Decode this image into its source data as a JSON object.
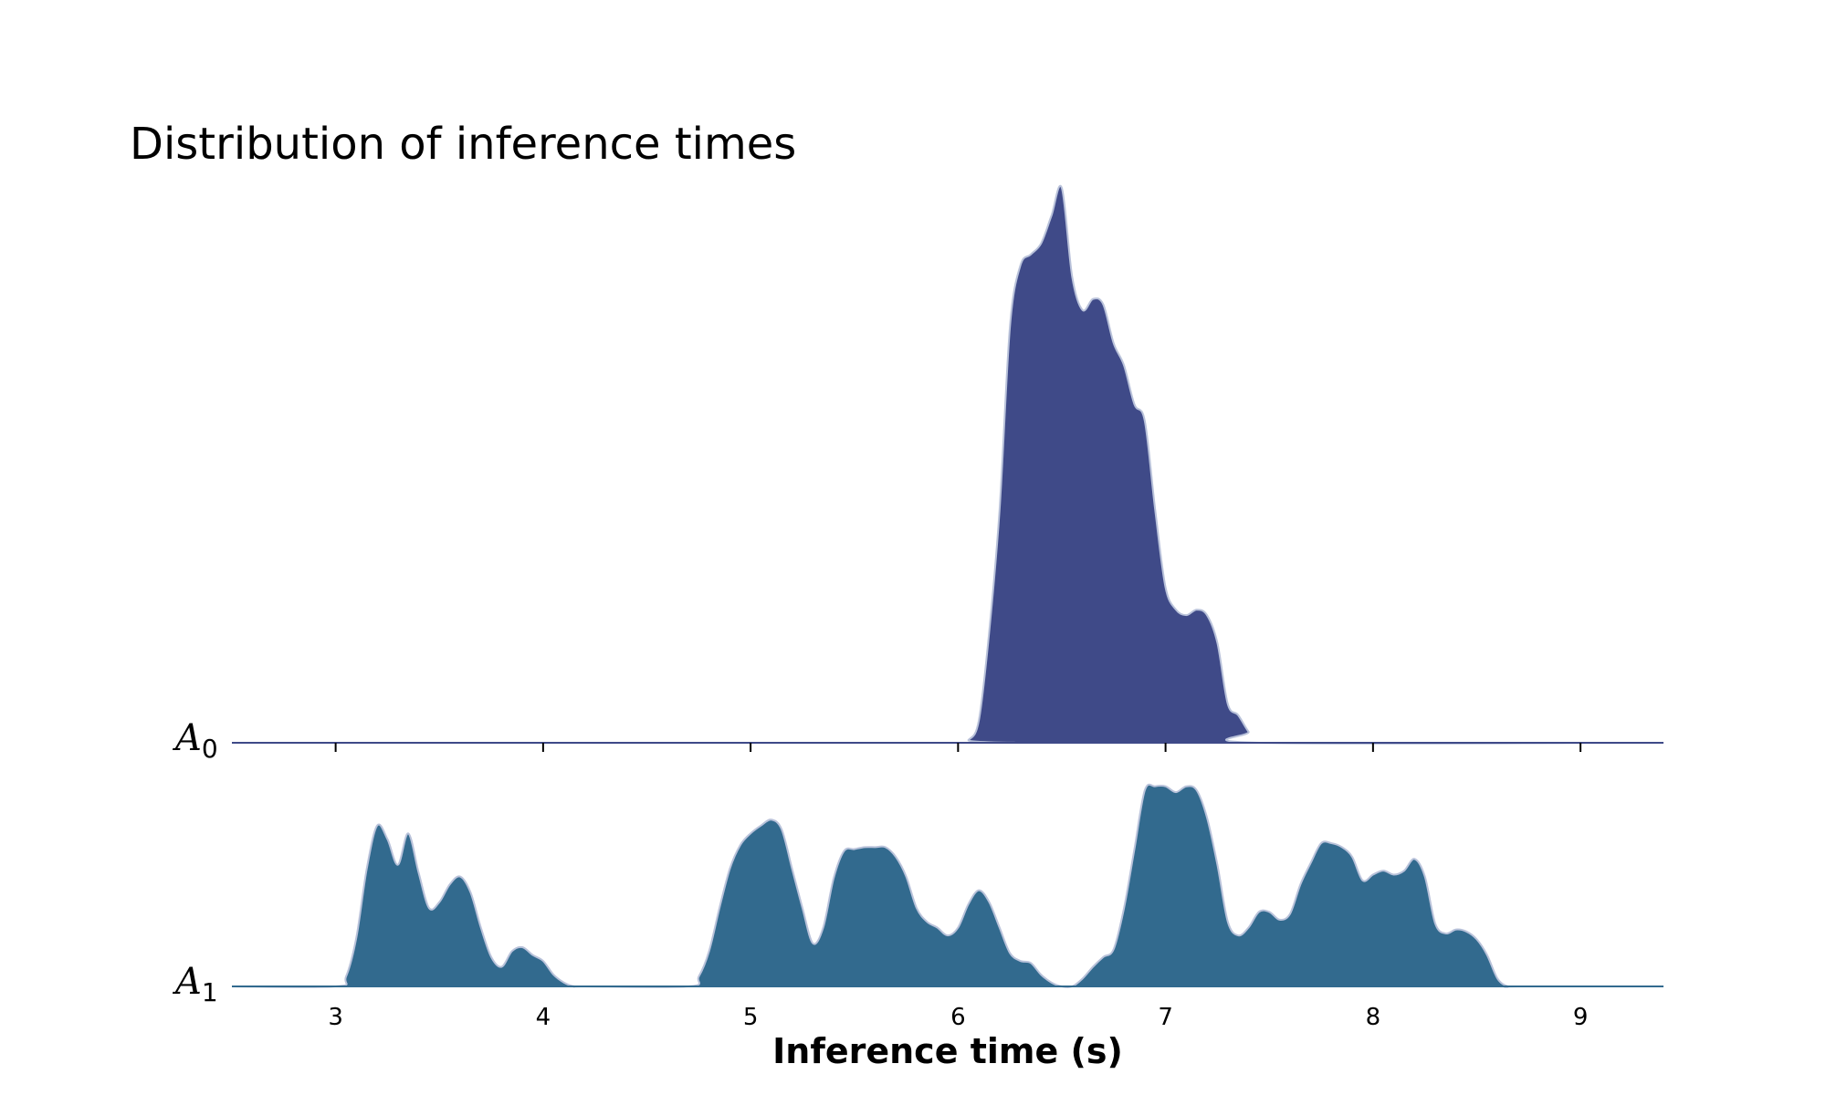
{
  "chart_data": {
    "type": "area",
    "title": "Distribution of inference times",
    "xlabel": "Inference time (s)",
    "ylabel": "",
    "xlim": [
      2.5,
      9.4
    ],
    "xticks": [
      3,
      4,
      5,
      6,
      7,
      8,
      9
    ],
    "grid": false,
    "legend": "none",
    "series": [
      {
        "name": "A",
        "subscript": "0",
        "color": "#3f4a88",
        "edge_color": "#b9c2da",
        "x": [
          2.5,
          6.0,
          6.05,
          6.1,
          6.15,
          6.2,
          6.25,
          6.3,
          6.35,
          6.4,
          6.45,
          6.5,
          6.55,
          6.6,
          6.65,
          6.7,
          6.75,
          6.8,
          6.85,
          6.9,
          6.95,
          7.0,
          7.05,
          7.1,
          7.15,
          7.2,
          7.25,
          7.3,
          7.35,
          7.4,
          7.45,
          9.4
        ],
        "y": [
          0,
          0,
          0.005,
          0.04,
          0.2,
          0.42,
          0.75,
          0.86,
          0.88,
          0.9,
          0.95,
          1.0,
          0.84,
          0.78,
          0.8,
          0.79,
          0.72,
          0.68,
          0.61,
          0.58,
          0.42,
          0.28,
          0.24,
          0.23,
          0.24,
          0.23,
          0.18,
          0.07,
          0.05,
          0.02,
          0.0,
          0
        ]
      },
      {
        "name": "A",
        "subscript": "1",
        "color": "#326a8e",
        "edge_color": "#b9c2da",
        "x": [
          2.5,
          3.0,
          3.05,
          3.1,
          3.15,
          3.2,
          3.25,
          3.3,
          3.35,
          3.4,
          3.45,
          3.5,
          3.55,
          3.6,
          3.65,
          3.7,
          3.75,
          3.8,
          3.85,
          3.9,
          3.95,
          4.0,
          4.05,
          4.1,
          4.15,
          4.2,
          4.7,
          4.75,
          4.8,
          4.85,
          4.9,
          4.95,
          5.0,
          5.05,
          5.1,
          5.15,
          5.2,
          5.25,
          5.3,
          5.35,
          5.4,
          5.45,
          5.5,
          5.55,
          5.6,
          5.65,
          5.7,
          5.75,
          5.8,
          5.85,
          5.9,
          5.95,
          6.0,
          6.05,
          6.1,
          6.15,
          6.2,
          6.25,
          6.3,
          6.35,
          6.4,
          6.45,
          6.5,
          6.55,
          6.6,
          6.65,
          6.7,
          6.75,
          6.8,
          6.85,
          6.9,
          6.95,
          7.0,
          7.05,
          7.1,
          7.15,
          7.2,
          7.25,
          7.3,
          7.35,
          7.4,
          7.45,
          7.5,
          7.55,
          7.6,
          7.65,
          7.7,
          7.75,
          7.8,
          7.85,
          7.9,
          7.95,
          8.0,
          8.05,
          8.1,
          8.15,
          8.2,
          8.25,
          8.3,
          8.35,
          8.4,
          8.45,
          8.5,
          8.55,
          8.6,
          8.65,
          8.7,
          9.4
        ],
        "y": [
          0,
          0,
          0.05,
          0.25,
          0.6,
          0.82,
          0.75,
          0.62,
          0.78,
          0.58,
          0.4,
          0.43,
          0.52,
          0.56,
          0.48,
          0.3,
          0.15,
          0.1,
          0.18,
          0.2,
          0.16,
          0.13,
          0.06,
          0.02,
          0.0,
          0.0,
          0.0,
          0.05,
          0.18,
          0.4,
          0.6,
          0.72,
          0.78,
          0.82,
          0.85,
          0.8,
          0.6,
          0.4,
          0.22,
          0.3,
          0.55,
          0.69,
          0.7,
          0.71,
          0.71,
          0.71,
          0.66,
          0.56,
          0.4,
          0.33,
          0.3,
          0.26,
          0.3,
          0.42,
          0.49,
          0.43,
          0.3,
          0.17,
          0.13,
          0.12,
          0.06,
          0.02,
          0.0,
          0.0,
          0.04,
          0.1,
          0.15,
          0.19,
          0.4,
          0.7,
          1.0,
          1.02,
          1.02,
          0.99,
          1.02,
          1.0,
          0.86,
          0.62,
          0.33,
          0.26,
          0.3,
          0.38,
          0.38,
          0.34,
          0.37,
          0.52,
          0.63,
          0.73,
          0.73,
          0.71,
          0.66,
          0.54,
          0.57,
          0.59,
          0.57,
          0.59,
          0.65,
          0.56,
          0.32,
          0.27,
          0.29,
          0.28,
          0.24,
          0.16,
          0.04,
          0.0,
          0.0,
          0
        ]
      }
    ]
  }
}
